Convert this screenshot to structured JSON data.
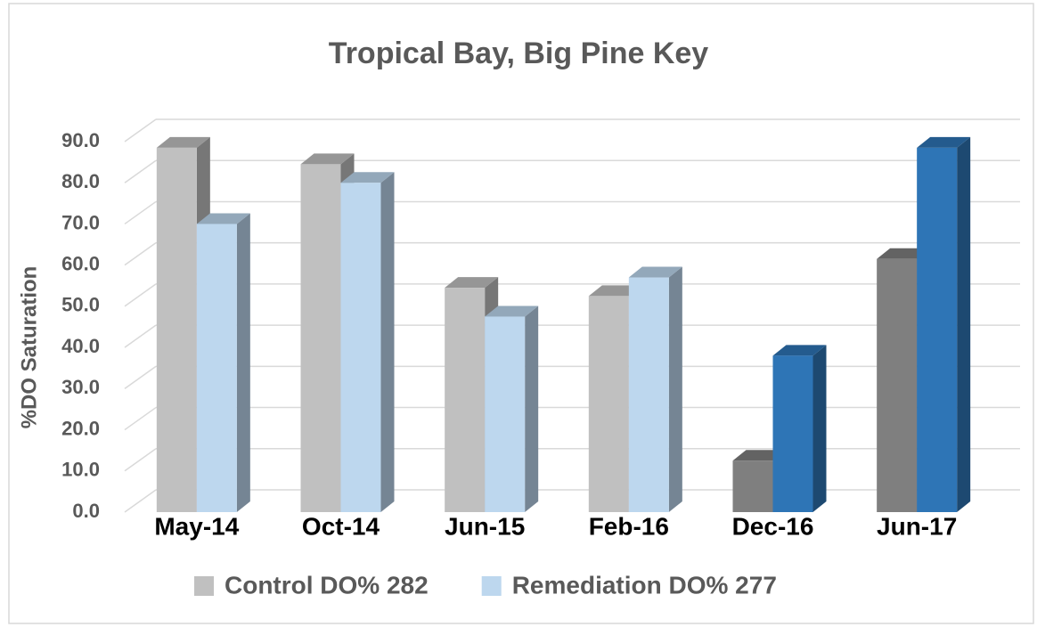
{
  "chart_data": {
    "type": "bar3d",
    "title": "Tropical Bay, Big Pine Key",
    "y_label": "%DO Saturation",
    "categories": [
      "May-14",
      "Oct-14",
      "Jun-15",
      "Feb-16",
      "Dec-16",
      "Jun-17"
    ],
    "series": [
      {
        "name": "Control DO% 282",
        "color": "#c0c0c0",
        "colors": [
          "#c0c0c0",
          "#c0c0c0",
          "#c0c0c0",
          "#c0c0c0",
          "#7f7f7f",
          "#7f7f7f"
        ],
        "values": [
          88.5,
          84.5,
          54.5,
          52.5,
          12.5,
          61.5
        ]
      },
      {
        "name": "Remediation DO% 277",
        "color": "#bdd7ee",
        "colors": [
          "#bdd7ee",
          "#bdd7ee",
          "#bdd7ee",
          "#bdd7ee",
          "#2e75b6",
          "#2e75b6"
        ],
        "values": [
          70,
          80,
          47.5,
          57,
          38,
          88.5
        ]
      }
    ],
    "ylim": [
      0,
      90
    ],
    "yticks": [
      {
        "value": 0,
        "label": "0.0"
      },
      {
        "value": 10,
        "label": "10.0"
      },
      {
        "value": 20,
        "label": "20.0"
      },
      {
        "value": 30,
        "label": "30.0"
      },
      {
        "value": 40,
        "label": "40.0"
      },
      {
        "value": 50,
        "label": "50.0"
      },
      {
        "value": 60,
        "label": "60.0"
      },
      {
        "value": 70,
        "label": "70.0"
      },
      {
        "value": 80,
        "label": "80.0"
      },
      {
        "value": 90,
        "label": "90.0"
      }
    ],
    "grid": true,
    "legend": "bottom"
  }
}
